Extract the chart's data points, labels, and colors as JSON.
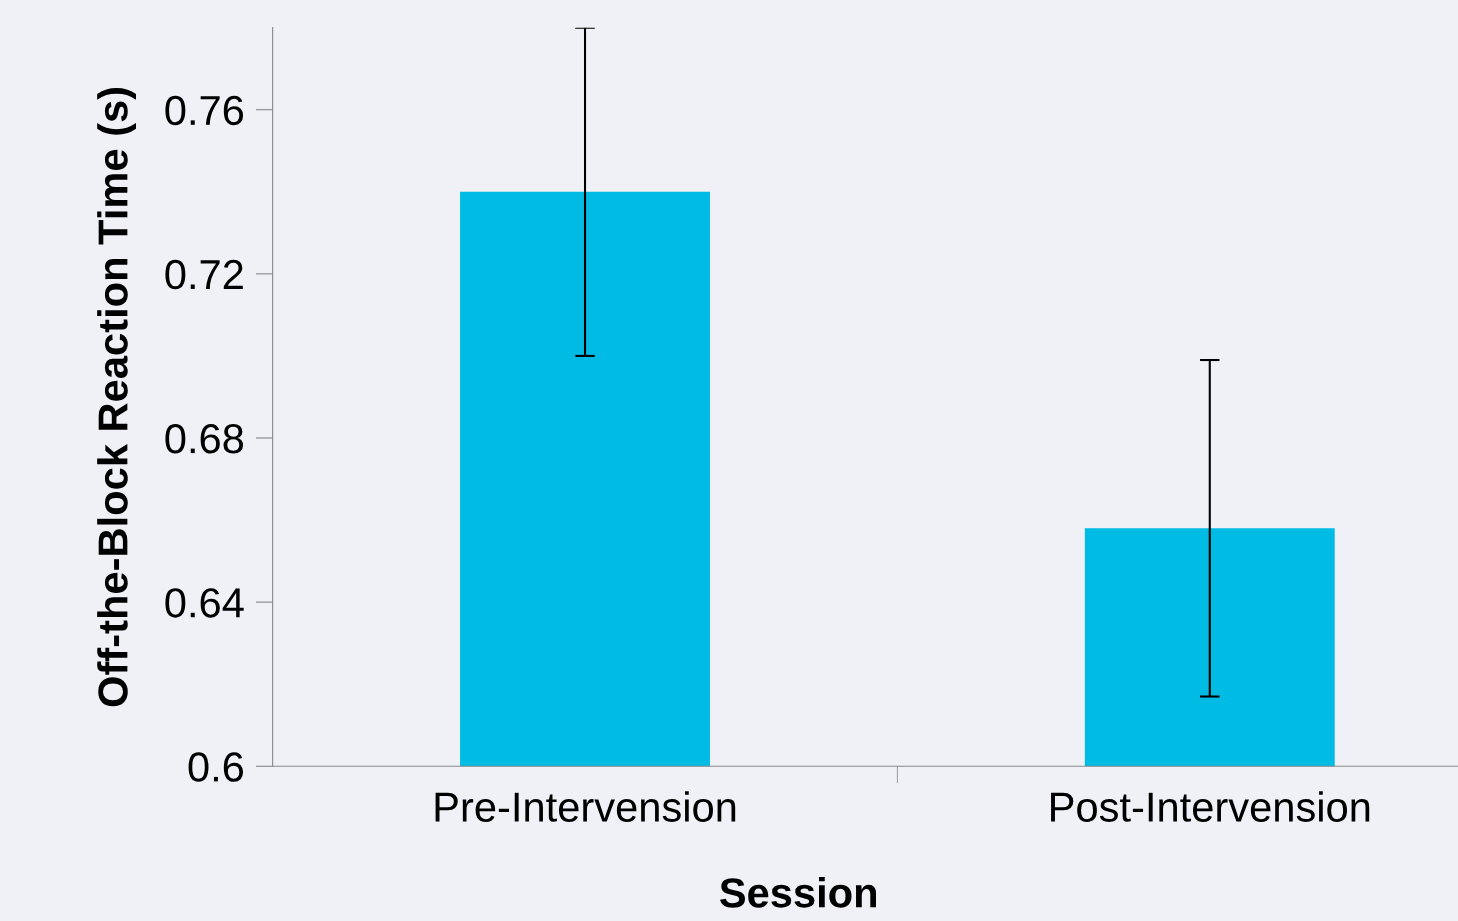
{
  "chart_data": {
    "type": "bar",
    "xlabel": "Session",
    "ylabel": "Off-the-Block Reaction Time (s)",
    "categories": [
      "Pre-Intervension",
      "Post-Intervension"
    ],
    "values": [
      0.74,
      0.658
    ],
    "errors": [
      0.04,
      0.041
    ],
    "color": "#00bbe3",
    "ylim": [
      0.6,
      0.78
    ],
    "yticks": [
      0.6,
      0.64,
      0.68,
      0.72,
      0.76
    ],
    "grid": false,
    "legend": false
  }
}
